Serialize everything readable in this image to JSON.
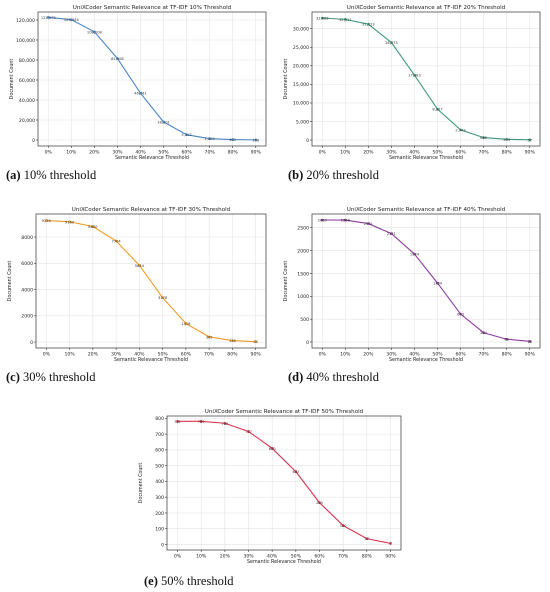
{
  "chart_data": [
    {
      "type": "line",
      "title": "UniXCoder Semantic Relevance at TF-IDF 10% Threshold",
      "xlabel": "Semantic Relevance Threshold",
      "ylabel": "Document Count",
      "categories": [
        "0%",
        "10%",
        "20%",
        "30%",
        "40%",
        "50%",
        "60%",
        "70%",
        "80%",
        "90%"
      ],
      "values": [
        122673,
        120345,
        108208,
        81508,
        46781,
        18101,
        5312,
        1304,
        401,
        106
      ],
      "data_labels": [
        "122,673",
        "120,345",
        "108,208",
        "81,508",
        "46,781",
        "18,101",
        "5,312",
        "1,304",
        "401",
        "106"
      ],
      "yticks": [
        0,
        20000,
        40000,
        60000,
        80000,
        100000,
        120000
      ],
      "ytick_labels": [
        "0",
        "20,000",
        "40,000",
        "60,000",
        "80,000",
        "100,000",
        "120,000"
      ],
      "ylim": [
        -6000,
        128000
      ],
      "color": "#4a86c7",
      "grid": true,
      "caption_letter": "(a)",
      "caption_text": "10% threshold"
    },
    {
      "type": "line",
      "title": "UniXCoder Semantic Relevance at TF-IDF 20% Threshold",
      "xlabel": "Semantic Relevance Threshold",
      "ylabel": "Document Count",
      "categories": [
        "0%",
        "10%",
        "20%",
        "30%",
        "40%",
        "50%",
        "60%",
        "70%",
        "80%",
        "90%"
      ],
      "values": [
        32883,
        32517,
        31223,
        26273,
        17483,
        8327,
        2743,
        665,
        203,
        57
      ],
      "data_labels": [
        "32,883",
        "32,517",
        "31,223",
        "26,273",
        "17,483",
        "8,327",
        "2,743",
        "665",
        "203",
        "57"
      ],
      "yticks": [
        0,
        5000,
        10000,
        15000,
        20000,
        25000,
        30000
      ],
      "ytick_labels": [
        "0",
        "5,000",
        "10,000",
        "15,000",
        "20,000",
        "25,000",
        "30,000"
      ],
      "ylim": [
        -1600,
        34500
      ],
      "color": "#3f9a78",
      "grid": true,
      "caption_letter": "(b)",
      "caption_text": "20% threshold"
    },
    {
      "type": "line",
      "title": "UniXCoder Semantic Relevance at TF-IDF 30% Threshold",
      "xlabel": "Semantic Relevance Threshold",
      "ylabel": "Document Count",
      "categories": [
        "0%",
        "10%",
        "20%",
        "30%",
        "40%",
        "50%",
        "60%",
        "70%",
        "80%",
        "90%"
      ],
      "values": [
        9250,
        9160,
        8800,
        7704,
        5844,
        3378,
        1418,
        395,
        116,
        32
      ],
      "data_labels": [
        "9250",
        "9160",
        "8800",
        "7704",
        "5844",
        "3378",
        "1418",
        "395",
        "116",
        "32"
      ],
      "yticks": [
        0,
        2000,
        4000,
        6000,
        8000
      ],
      "ytick_labels": [
        "0",
        "2000",
        "4000",
        "6000",
        "8000"
      ],
      "ylim": [
        -450,
        9750
      ],
      "color": "#f29a1f",
      "grid": true,
      "caption_letter": "(c)",
      "caption_text": "30% threshold"
    },
    {
      "type": "line",
      "title": "UniXCoder Semantic Relevance at TF-IDF 40% Threshold",
      "xlabel": "Semantic Relevance Threshold",
      "ylabel": "Document Count",
      "categories": [
        "0%",
        "10%",
        "20%",
        "30%",
        "40%",
        "50%",
        "60%",
        "70%",
        "80%",
        "90%"
      ],
      "values": [
        2669,
        2668,
        2591,
        2371,
        1924,
        1289,
        613,
        204,
        62,
        16
      ],
      "data_labels": [
        "2669",
        "2668",
        "2591",
        "2371",
        "1924",
        "1289",
        "613",
        "204",
        "62",
        "16"
      ],
      "yticks": [
        0,
        500,
        1000,
        1500,
        2000,
        2500
      ],
      "ytick_labels": [
        "0",
        "500",
        "1000",
        "1500",
        "2000",
        "2500"
      ],
      "ylim": [
        -130,
        2800
      ],
      "color": "#8e3c9f",
      "grid": true,
      "caption_letter": "(d)",
      "caption_text": "40% threshold"
    },
    {
      "type": "line",
      "title": "UniXCoder Semantic Relevance at TF-IDF 50% Threshold",
      "xlabel": "Semantic Relevance Threshold",
      "ylabel": "Document Count",
      "categories": [
        "0%",
        "10%",
        "20%",
        "30%",
        "40%",
        "50%",
        "60%",
        "70%",
        "80%",
        "90%"
      ],
      "values": [
        781,
        781,
        769,
        717,
        610,
        462,
        265,
        120,
        37,
        7
      ],
      "data_labels": [
        "781",
        "781",
        "769",
        "717",
        "610",
        "462",
        "265",
        "120",
        "37",
        "7"
      ],
      "yticks": [
        0,
        100,
        200,
        300,
        400,
        500,
        600,
        700,
        800
      ],
      "ytick_labels": [
        "0",
        "100",
        "200",
        "300",
        "400",
        "500",
        "600",
        "700",
        "800"
      ],
      "ylim": [
        -35,
        815
      ],
      "color": "#d6344f",
      "grid": true,
      "caption_letter": "(e)",
      "caption_text": "50% threshold"
    }
  ]
}
